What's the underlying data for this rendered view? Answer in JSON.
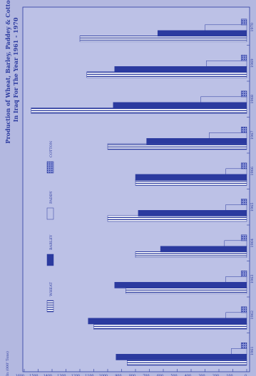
{
  "chart_data": {
    "type": "bar",
    "title": "Production of Wheat, Barley, Paddey & Cotton",
    "subtitle": "In Iraq For The Year 1961 - 1970",
    "ylabel": "In (000' Tons)",
    "xlabel": "",
    "ylim": [
      0,
      1600
    ],
    "yticks": [
      0,
      100,
      200,
      300,
      400,
      500,
      600,
      700,
      800,
      900,
      1000,
      1100,
      1200,
      1300,
      1400,
      1500,
      1600
    ],
    "categories": [
      "1961",
      "1962",
      "1963",
      "1964",
      "1965",
      "1966",
      "1967",
      "1968",
      "1969",
      "1970"
    ],
    "series": [
      {
        "name": "WHEAT",
        "pattern": "hatched",
        "values": [
          860,
          1100,
          870,
          800,
          1000,
          800,
          1000,
          1550,
          1150,
          1200
        ]
      },
      {
        "name": "BARLEY",
        "pattern": "solid",
        "values": [
          940,
          1140,
          950,
          620,
          780,
          800,
          720,
          960,
          950,
          640
        ]
      },
      {
        "name": "PADDY",
        "pattern": "open",
        "values": [
          110,
          150,
          150,
          160,
          150,
          150,
          270,
          330,
          290,
          300
        ]
      },
      {
        "name": "COTTON",
        "pattern": "dotted",
        "values": [
          40,
          40,
          40,
          40,
          40,
          40,
          40,
          40,
          40,
          40
        ]
      }
    ],
    "legend_position": "top",
    "colors": {
      "ink": "#2b3a9f",
      "background": "#b3b8e0",
      "panel": "#bcc1e6"
    }
  }
}
